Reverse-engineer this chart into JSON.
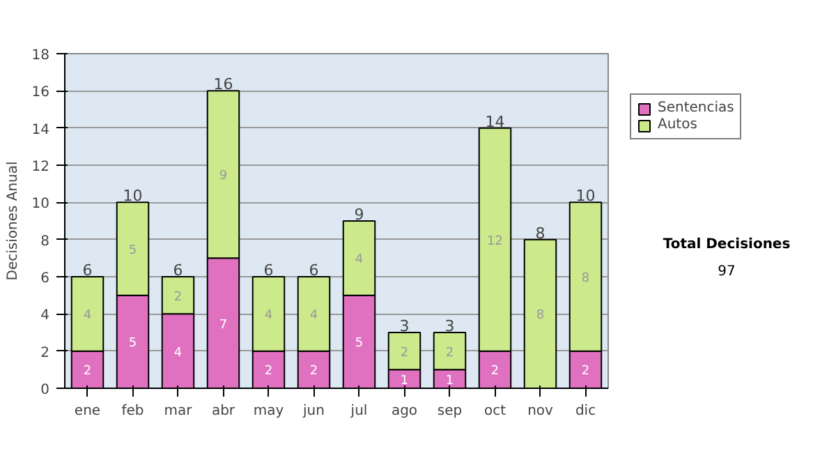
{
  "chart_data": {
    "type": "bar",
    "stacked": true,
    "ylabel": "Decisiones Anual",
    "categories": [
      "ene",
      "feb",
      "mar",
      "abr",
      "may",
      "jun",
      "jul",
      "ago",
      "sep",
      "oct",
      "nov",
      "dic"
    ],
    "series": [
      {
        "name": "Sentencias",
        "color": "#e070c0",
        "values": [
          2,
          5,
          4,
          7,
          2,
          2,
          5,
          1,
          1,
          2,
          0,
          2
        ],
        "value_labels": [
          "2",
          "5",
          "4",
          "7",
          "2",
          "2",
          "5",
          "1",
          "1",
          "2",
          null,
          "2"
        ]
      },
      {
        "name": "Autos",
        "color": "#cce98c",
        "values": [
          4,
          5,
          2,
          9,
          4,
          4,
          4,
          2,
          2,
          12,
          8,
          8
        ],
        "value_labels": [
          "4",
          "5",
          "2",
          "9",
          "4",
          "4",
          "4",
          "2",
          "2",
          "12",
          "8",
          "8"
        ]
      }
    ],
    "totals": [
      "6",
      "10",
      "6",
      "16",
      "6",
      "6",
      "9",
      "3",
      "3",
      "14",
      "8",
      "10"
    ],
    "ylim": [
      0,
      18
    ],
    "yticks": [
      0,
      2,
      4,
      6,
      8,
      10,
      12,
      14,
      16,
      18
    ],
    "grid": "y",
    "legend": "right",
    "annotations": [
      "Total Decisiones",
      "97"
    ]
  }
}
